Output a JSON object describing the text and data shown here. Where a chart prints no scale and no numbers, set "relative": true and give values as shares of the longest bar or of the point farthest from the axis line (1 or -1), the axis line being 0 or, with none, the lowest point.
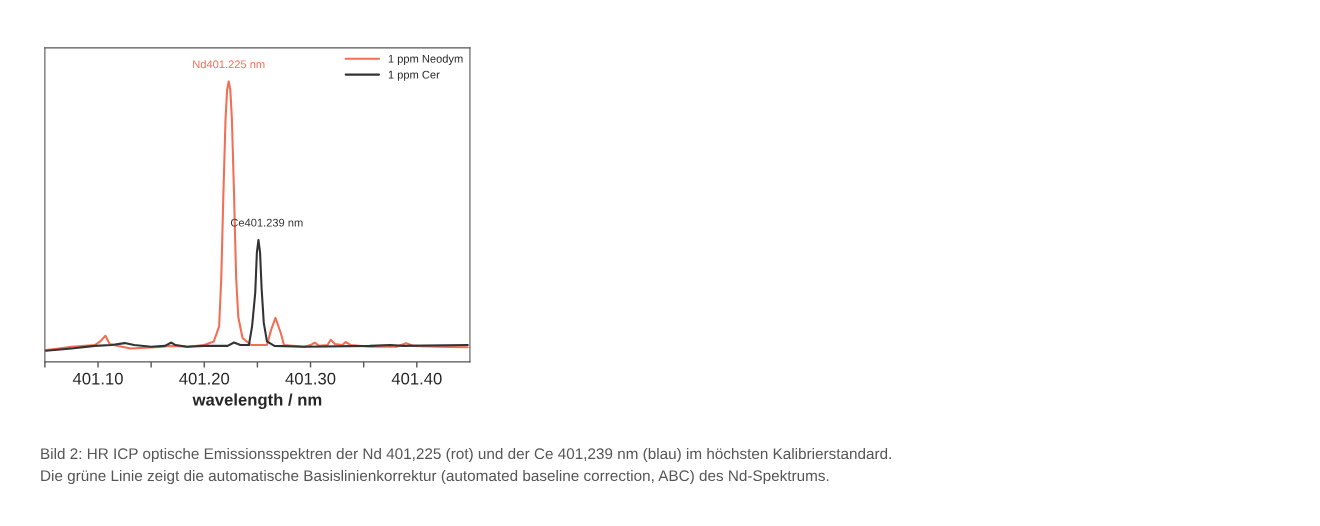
{
  "chart_data": {
    "type": "line",
    "xlabel": "wavelength / nm",
    "relative": true,
    "legend": "top right",
    "grid": false,
    "line_style": "solid",
    "marker": "none",
    "xlim": [
      401.05,
      401.45
    ],
    "xticks": [
      {
        "value": 401.05,
        "label": null
      },
      {
        "value": 401.1,
        "label": "401.10"
      },
      {
        "value": 401.15,
        "label": null
      },
      {
        "value": 401.2,
        "label": "401.20"
      },
      {
        "value": 401.25,
        "label": null
      },
      {
        "value": 401.3,
        "label": "401.30"
      },
      {
        "value": 401.35,
        "label": null
      },
      {
        "value": 401.4,
        "label": "401.40"
      }
    ],
    "series": [
      {
        "name": "1 ppm Neodym",
        "color": "#f26f55",
        "x": [
          401.051,
          401.063,
          401.075,
          401.097,
          401.102,
          401.107,
          401.111,
          401.119,
          401.131,
          401.153,
          401.169,
          401.184,
          401.2,
          401.209,
          401.214,
          401.216,
          401.218,
          401.22,
          401.2215,
          401.223,
          401.2245,
          401.226,
          401.228,
          401.23,
          401.232,
          401.236,
          401.244,
          401.259,
          401.263,
          401.267,
          401.272,
          401.275,
          401.294,
          401.3,
          401.304,
          401.308,
          401.316,
          401.319,
          401.323,
          401.33,
          401.333,
          401.338,
          401.356,
          401.381,
          401.39,
          401.397,
          401.419,
          401.448
        ],
        "values": [
          0.042,
          0.048,
          0.054,
          0.06,
          0.073,
          0.093,
          0.064,
          0.057,
          0.048,
          0.052,
          0.057,
          0.054,
          0.06,
          0.073,
          0.127,
          0.3,
          0.6,
          0.865,
          0.97,
          1,
          0.97,
          0.865,
          0.6,
          0.3,
          0.16,
          0.085,
          0.06,
          0.06,
          0.115,
          0.157,
          0.103,
          0.06,
          0.054,
          0.06,
          0.069,
          0.057,
          0.06,
          0.079,
          0.064,
          0.06,
          0.071,
          0.06,
          0.054,
          0.054,
          0.067,
          0.057,
          0.054,
          0.052
        ]
      },
      {
        "name": "1 ppm Cer",
        "color": "#333333",
        "x": [
          401.051,
          401.075,
          401.097,
          401.113,
          401.125,
          401.134,
          401.15,
          401.163,
          401.169,
          401.173,
          401.184,
          401.2,
          401.222,
          401.228,
          401.234,
          401.242,
          401.245,
          401.248,
          401.2495,
          401.251,
          401.2525,
          401.254,
          401.256,
          401.259,
          401.266,
          401.294,
          401.356,
          401.375,
          401.387,
          401.448
        ],
        "values": [
          0.04,
          0.048,
          0.057,
          0.06,
          0.067,
          0.06,
          0.054,
          0.057,
          0.069,
          0.06,
          0.054,
          0.057,
          0.057,
          0.069,
          0.06,
          0.06,
          0.127,
          0.248,
          0.39,
          0.435,
          0.39,
          0.26,
          0.139,
          0.073,
          0.057,
          0.054,
          0.057,
          0.06,
          0.057,
          0.06
        ]
      }
    ],
    "annotations": [
      {
        "text": "Nd401.225 nm",
        "x": 401.223,
        "y": 1
      },
      {
        "text": "Ce401.239 nm",
        "x": 401.251,
        "y": 0.435
      },
      "Bild 2: HR ICP optische Emissionsspektren der Nd 401,225 (rot) und der Ce 401,239 nm (blau) im höchsten Kalibrierstandard.",
      "Die grüne Linie zeigt die automatische Basislinienkorrektur (automated baseline correction, ABC) des Nd-Spektrums."
    ]
  }
}
